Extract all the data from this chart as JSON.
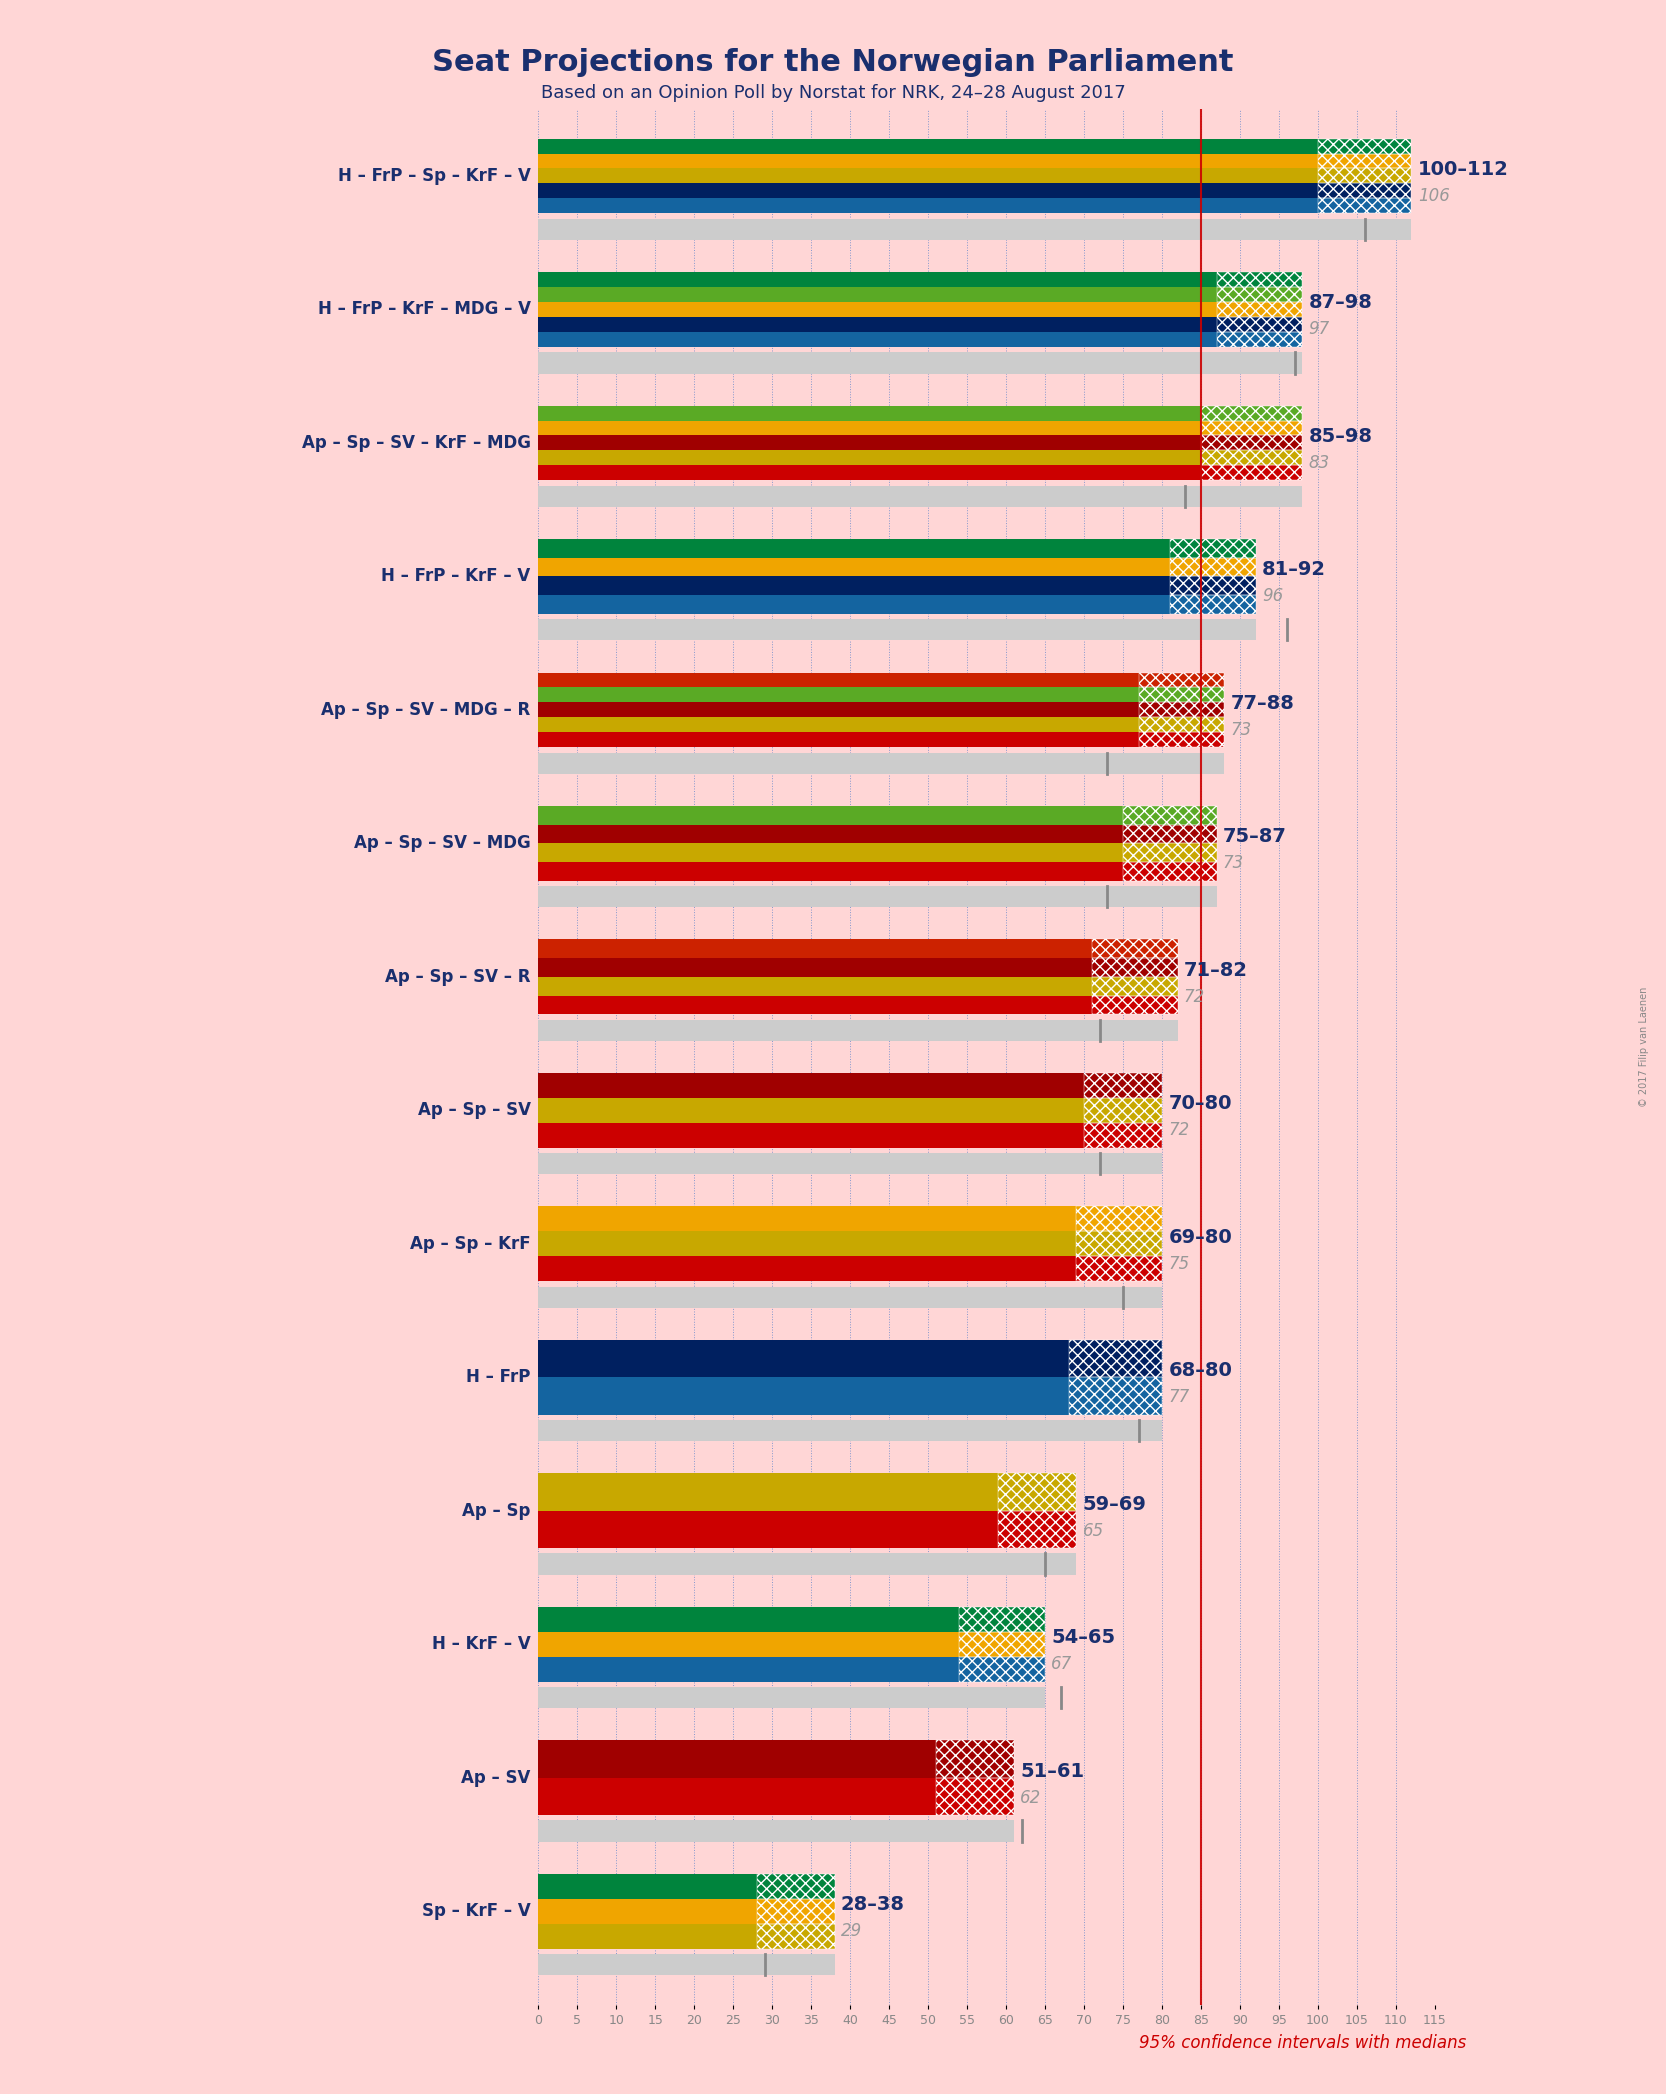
{
  "title": "Seat Projections for the Norwegian Parliament",
  "subtitle": "Based on an Opinion Poll by Norstat for NRK, 24–28 August 2017",
  "credit": "© 2017 Filip van Laenen",
  "footer": "95% confidence intervals with medians",
  "background_color": "#FFD6D6",
  "title_color": "#1a2f6e",
  "subtitle_color": "#1a2f6e",
  "grid_color": "#aaaacc",
  "majority_line": 85,
  "xlim": [
    0,
    115
  ],
  "xtick_step": 5,
  "party_colors": {
    "H": "#1464a0",
    "FrP": "#002060",
    "Sp": "#c8a800",
    "KrF": "#f0a500",
    "V": "#00843d",
    "Ap": "#cc0000",
    "SV": "#a00000",
    "MDG": "#5aaa25",
    "R": "#cc2200"
  },
  "coalitions": [
    {
      "label": "H – FrP – Sp – KrF – V",
      "parties": [
        "H",
        "FrP",
        "Sp",
        "KrF",
        "V"
      ],
      "ci_low": 100,
      "ci_high": 112,
      "median": 106,
      "range_label": "100–112",
      "median_label": "106"
    },
    {
      "label": "H – FrP – KrF – MDG – V",
      "parties": [
        "H",
        "FrP",
        "KrF",
        "MDG",
        "V"
      ],
      "ci_low": 87,
      "ci_high": 98,
      "median": 97,
      "range_label": "87–98",
      "median_label": "97"
    },
    {
      "label": "Ap – Sp – SV – KrF – MDG",
      "parties": [
        "Ap",
        "Sp",
        "SV",
        "KrF",
        "MDG"
      ],
      "ci_low": 85,
      "ci_high": 98,
      "median": 83,
      "range_label": "85–98",
      "median_label": "83"
    },
    {
      "label": "H – FrP – KrF – V",
      "parties": [
        "H",
        "FrP",
        "KrF",
        "V"
      ],
      "ci_low": 81,
      "ci_high": 92,
      "median": 96,
      "range_label": "81–92",
      "median_label": "96"
    },
    {
      "label": "Ap – Sp – SV – MDG – R",
      "parties": [
        "Ap",
        "Sp",
        "SV",
        "MDG",
        "R"
      ],
      "ci_low": 77,
      "ci_high": 88,
      "median": 73,
      "range_label": "77–88",
      "median_label": "73"
    },
    {
      "label": "Ap – Sp – SV – MDG",
      "parties": [
        "Ap",
        "Sp",
        "SV",
        "MDG"
      ],
      "ci_low": 75,
      "ci_high": 87,
      "median": 73,
      "range_label": "75–87",
      "median_label": "73"
    },
    {
      "label": "Ap – Sp – SV – R",
      "parties": [
        "Ap",
        "Sp",
        "SV",
        "R"
      ],
      "ci_low": 71,
      "ci_high": 82,
      "median": 72,
      "range_label": "71–82",
      "median_label": "72"
    },
    {
      "label": "Ap – Sp – SV",
      "parties": [
        "Ap",
        "Sp",
        "SV"
      ],
      "ci_low": 70,
      "ci_high": 80,
      "median": 72,
      "range_label": "70–80",
      "median_label": "72"
    },
    {
      "label": "Ap – Sp – KrF",
      "parties": [
        "Ap",
        "Sp",
        "KrF"
      ],
      "ci_low": 69,
      "ci_high": 80,
      "median": 75,
      "range_label": "69–80",
      "median_label": "75"
    },
    {
      "label": "H – FrP",
      "parties": [
        "H",
        "FrP"
      ],
      "ci_low": 68,
      "ci_high": 80,
      "median": 77,
      "range_label": "68–80",
      "median_label": "77"
    },
    {
      "label": "Ap – Sp",
      "parties": [
        "Ap",
        "Sp"
      ],
      "ci_low": 59,
      "ci_high": 69,
      "median": 65,
      "range_label": "59–69",
      "median_label": "65"
    },
    {
      "label": "H – KrF – V",
      "parties": [
        "H",
        "KrF",
        "V"
      ],
      "ci_low": 54,
      "ci_high": 65,
      "median": 67,
      "range_label": "54–65",
      "median_label": "67"
    },
    {
      "label": "Ap – SV",
      "parties": [
        "Ap",
        "SV"
      ],
      "ci_low": 51,
      "ci_high": 61,
      "median": 62,
      "range_label": "51–61",
      "median_label": "62"
    },
    {
      "label": "Sp – KrF – V",
      "parties": [
        "Sp",
        "KrF",
        "V"
      ],
      "ci_low": 28,
      "ci_high": 38,
      "median": 29,
      "range_label": "28–38",
      "median_label": "29"
    }
  ]
}
